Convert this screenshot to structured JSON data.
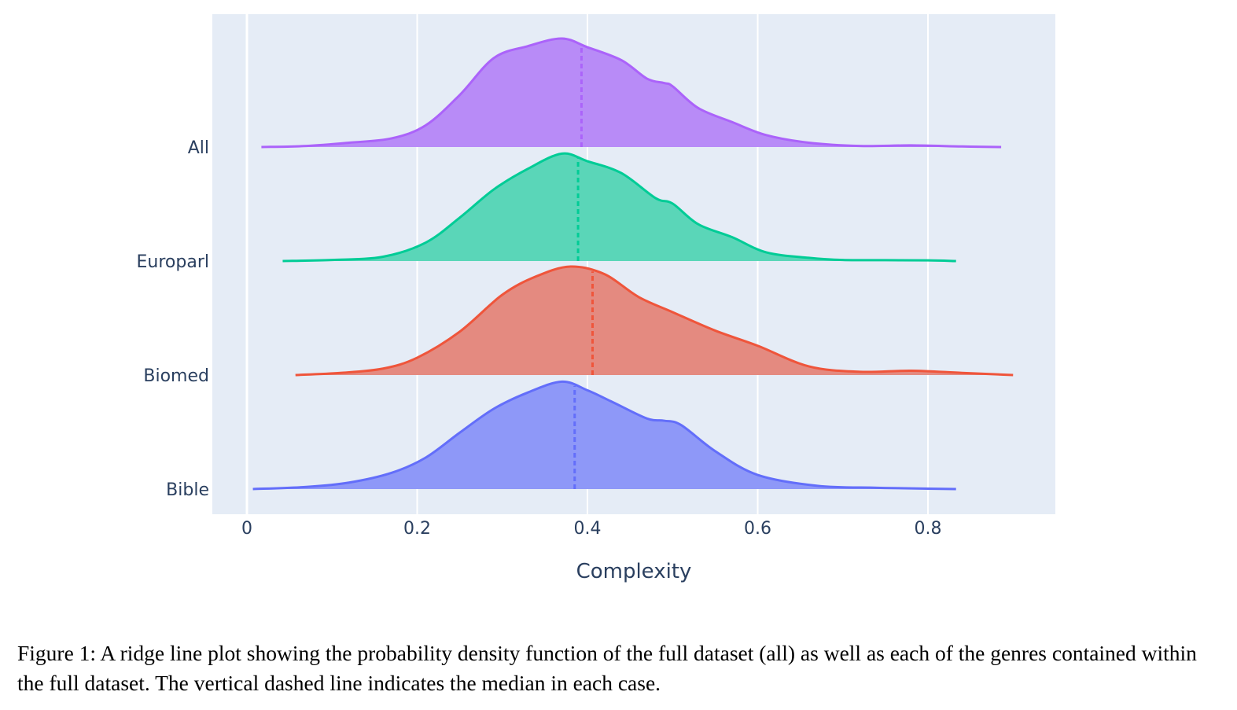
{
  "chart_data": {
    "type": "area",
    "subtype": "ridgeline",
    "xlabel": "Complexity",
    "xlim": [
      -0.04,
      0.95
    ],
    "x_ticks": [
      0,
      0.2,
      0.4,
      0.6,
      0.8
    ],
    "x_tick_labels": [
      "0",
      "0.2",
      "0.4",
      "0.6",
      "0.8"
    ],
    "grid": true,
    "median_line": "dashed vertical",
    "series": [
      {
        "name": "All",
        "color": "#ab63fa",
        "fill": "#b88bf7",
        "median": 0.393,
        "x": [
          0.017,
          0.07,
          0.12,
          0.17,
          0.21,
          0.25,
          0.29,
          0.33,
          0.37,
          0.4,
          0.44,
          0.47,
          0.49,
          0.5,
          0.53,
          0.57,
          0.61,
          0.66,
          0.72,
          0.78,
          0.84,
          0.886
        ],
        "y": [
          0.0,
          0.01,
          0.04,
          0.08,
          0.2,
          0.48,
          0.82,
          0.93,
          1.0,
          0.92,
          0.8,
          0.63,
          0.59,
          0.56,
          0.36,
          0.23,
          0.11,
          0.04,
          0.01,
          0.015,
          0.005,
          0.0
        ]
      },
      {
        "name": "Europarl",
        "color": "#00cc96",
        "fill": "#5ad6b8",
        "median": 0.389,
        "x": [
          0.042,
          0.1,
          0.16,
          0.21,
          0.25,
          0.29,
          0.33,
          0.37,
          0.4,
          0.44,
          0.48,
          0.5,
          0.53,
          0.57,
          0.61,
          0.66,
          0.7,
          0.75,
          0.8,
          0.833
        ],
        "y": [
          0.0,
          0.01,
          0.04,
          0.17,
          0.4,
          0.66,
          0.85,
          0.99,
          0.92,
          0.81,
          0.58,
          0.53,
          0.34,
          0.22,
          0.08,
          0.03,
          0.01,
          0.008,
          0.006,
          0.0
        ]
      },
      {
        "name": "Biomed",
        "color": "#ef553b",
        "fill": "#e48a80",
        "median": 0.406,
        "x": [
          0.057,
          0.11,
          0.16,
          0.2,
          0.25,
          0.3,
          0.34,
          0.38,
          0.42,
          0.46,
          0.5,
          0.55,
          0.6,
          0.66,
          0.72,
          0.78,
          0.84,
          0.9
        ],
        "y": [
          0.0,
          0.02,
          0.06,
          0.16,
          0.4,
          0.74,
          0.91,
          1.0,
          0.93,
          0.72,
          0.58,
          0.41,
          0.27,
          0.08,
          0.03,
          0.04,
          0.02,
          0.0
        ]
      },
      {
        "name": "Bible",
        "color": "#636efa",
        "fill": "#8e98f8",
        "median": 0.385,
        "x": [
          0.007,
          0.07,
          0.12,
          0.17,
          0.21,
          0.25,
          0.29,
          0.33,
          0.37,
          0.4,
          0.43,
          0.47,
          0.49,
          0.51,
          0.55,
          0.6,
          0.67,
          0.74,
          0.8,
          0.833
        ],
        "y": [
          0.0,
          0.02,
          0.06,
          0.15,
          0.29,
          0.52,
          0.74,
          0.89,
          0.99,
          0.91,
          0.8,
          0.65,
          0.63,
          0.59,
          0.35,
          0.13,
          0.03,
          0.012,
          0.004,
          0.0
        ]
      }
    ]
  },
  "caption": "Figure 1: A ridge line plot showing the probability density function of the full dataset (all) as well as each of the genres contained within the full dataset. The vertical dashed line indicates the median in each case."
}
